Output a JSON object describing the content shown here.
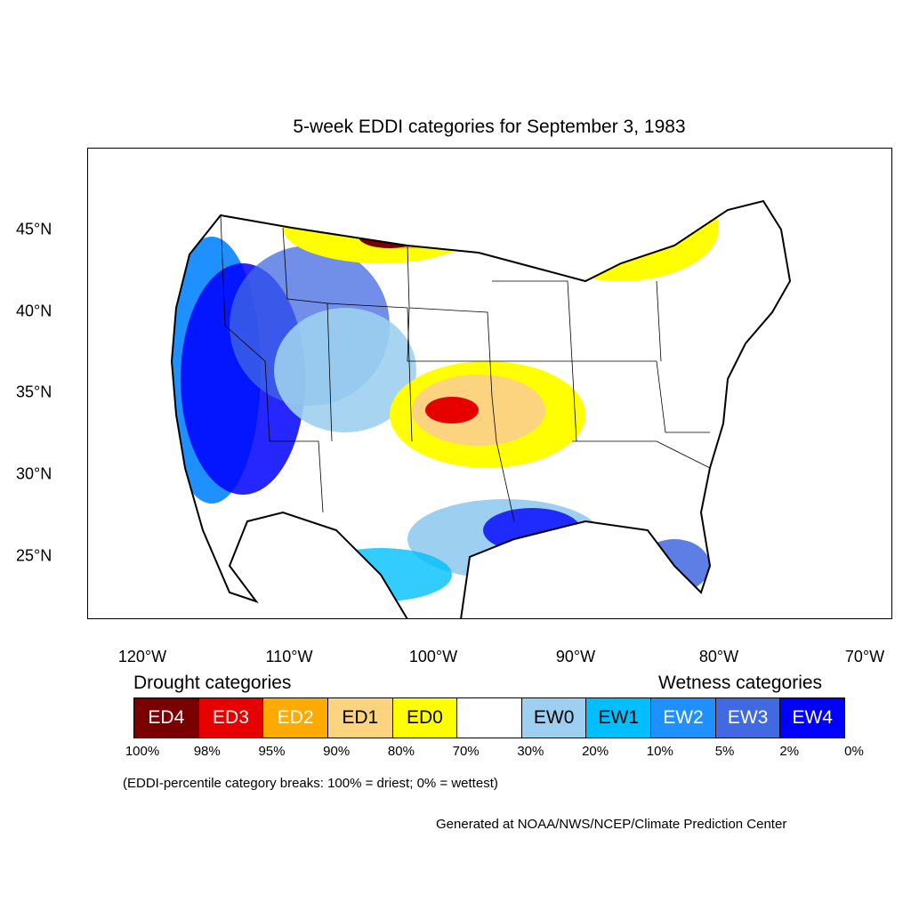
{
  "title": "5-week EDDI categories for September 3, 1983",
  "axes": {
    "lon_ticks": [
      "120°W",
      "110°W",
      "100°W",
      "90°W",
      "80°W",
      "70°W"
    ],
    "lat_ticks": [
      "45°N",
      "40°N",
      "35°N",
      "30°N",
      "25°N"
    ]
  },
  "legend": {
    "drought_label": "Drought categories",
    "wetness_label": "Wetness categories",
    "categories": [
      {
        "label": "ED4",
        "color": "#7a0000",
        "text_color": "#ffffff"
      },
      {
        "label": "ED3",
        "color": "#e60000",
        "text_color": "#ffffff"
      },
      {
        "label": "ED2",
        "color": "#ffaa00",
        "text_color": "#ffffff"
      },
      {
        "label": "ED1",
        "color": "#fcd37f",
        "text_color": "#000000"
      },
      {
        "label": "ED0",
        "color": "#ffff00",
        "text_color": "#000000"
      },
      {
        "label": "",
        "color": "#ffffff",
        "text_color": "#000000"
      },
      {
        "label": "EW0",
        "color": "#9ccff0",
        "text_color": "#000000"
      },
      {
        "label": "EW1",
        "color": "#00bfff",
        "text_color": "#000000"
      },
      {
        "label": "EW2",
        "color": "#1e90ff",
        "text_color": "#ffffff"
      },
      {
        "label": "EW3",
        "color": "#4169e1",
        "text_color": "#ffffff"
      },
      {
        "label": "EW4",
        "color": "#0000ff",
        "text_color": "#ffffff"
      }
    ],
    "breaks": [
      "100%",
      "98%",
      "95%",
      "90%",
      "80%",
      "70%",
      "30%",
      "20%",
      "10%",
      "5%",
      "2%",
      "0%"
    ]
  },
  "note": "(EDDI-percentile category breaks: 100% = driest; 0% = wettest)",
  "credit": "Generated at NOAA/NWS/NCEP/Climate Prediction Center"
}
